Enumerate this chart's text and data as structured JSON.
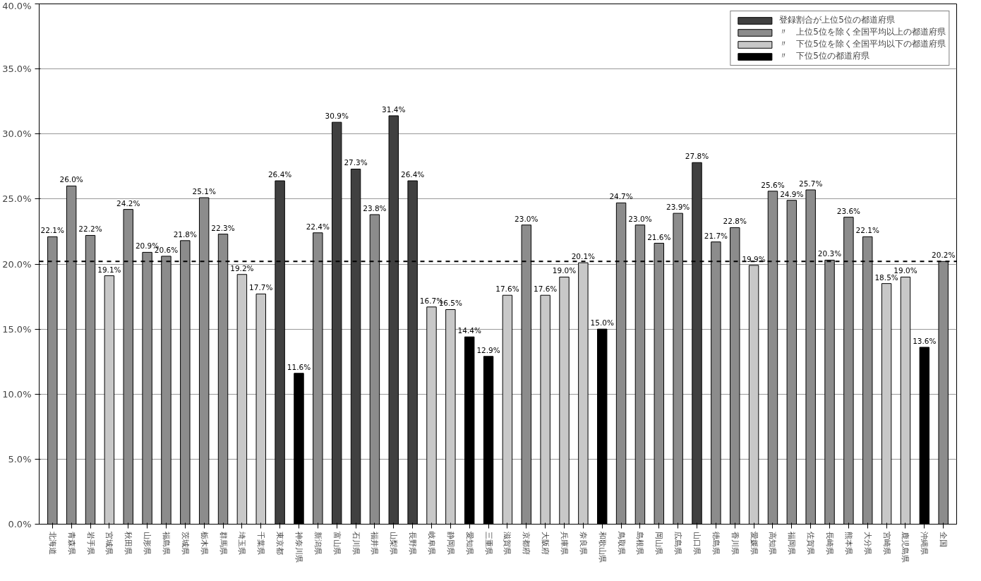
{
  "chart_data": {
    "type": "bar",
    "categories": [
      "北海道",
      "青森県",
      "岩手県",
      "宮城県",
      "秋田県",
      "山形県",
      "福島県",
      "茨城県",
      "栃木県",
      "群馬県",
      "埼玉県",
      "千葉県",
      "東京都",
      "神奈川県",
      "新潟県",
      "富山県",
      "石川県",
      "福井県",
      "山梨県",
      "長野県",
      "岐阜県",
      "静岡県",
      "愛知県",
      "三重県",
      "滋賀県",
      "京都府",
      "大阪府",
      "兵庫県",
      "奈良県",
      "和歌山県",
      "鳥取県",
      "島根県",
      "岡山県",
      "広島県",
      "山口県",
      "徳島県",
      "香川県",
      "愛媛県",
      "高知県",
      "福岡県",
      "佐賀県",
      "長崎県",
      "熊本県",
      "大分県",
      "宮崎県",
      "鹿児島県",
      "沖縄県",
      "全国"
    ],
    "series": [
      {
        "name": "登録割合が上位5位の都道府県",
        "color": "#404040",
        "values": [
          null,
          null,
          null,
          null,
          null,
          null,
          null,
          null,
          null,
          null,
          null,
          null,
          26.4,
          null,
          null,
          30.9,
          27.3,
          null,
          31.4,
          26.4,
          null,
          null,
          null,
          null,
          null,
          null,
          null,
          null,
          null,
          null,
          null,
          null,
          null,
          null,
          27.8,
          null,
          null,
          null,
          null,
          null,
          null,
          null,
          null,
          null,
          null,
          null,
          null,
          null
        ],
        "value_labels": [
          null,
          null,
          null,
          null,
          null,
          null,
          null,
          null,
          null,
          null,
          null,
          null,
          "26.4%",
          null,
          null,
          "30.9%",
          "27.3%",
          null,
          "31.4%",
          "26.4%",
          null,
          null,
          null,
          null,
          null,
          null,
          null,
          null,
          null,
          null,
          null,
          null,
          null,
          null,
          "27.8%",
          null,
          null,
          null,
          null,
          null,
          null,
          null,
          null,
          null,
          null,
          null,
          null,
          null
        ]
      },
      {
        "name": "〃　上位5位を除く全国平均以上の都道府県",
        "color": "#8c8c8c",
        "values": [
          22.1,
          26.0,
          22.2,
          null,
          24.2,
          20.9,
          20.6,
          21.8,
          25.1,
          22.3,
          null,
          null,
          null,
          null,
          22.4,
          null,
          null,
          23.8,
          null,
          null,
          null,
          null,
          null,
          null,
          null,
          23.0,
          null,
          null,
          null,
          null,
          24.7,
          23.0,
          21.6,
          23.9,
          null,
          21.7,
          22.8,
          null,
          25.6,
          24.9,
          25.7,
          20.3,
          23.6,
          22.1,
          null,
          null,
          null,
          20.2
        ],
        "value_labels": [
          "22.1%",
          "26.0%",
          "22.2%",
          null,
          "24.2%",
          "20.9%",
          "20.6%",
          "21.8%",
          "25.1%",
          "22.3%",
          null,
          null,
          null,
          null,
          "22.4%",
          null,
          null,
          "23.8%",
          null,
          null,
          null,
          null,
          null,
          null,
          null,
          "23.0%",
          null,
          null,
          null,
          null,
          "24.7%",
          "23.0%",
          "21.6%",
          "23.9%",
          null,
          "21.7%",
          "22.8%",
          null,
          "25.6%",
          "24.9%",
          "25.7%",
          "20.3%",
          "23.6%",
          "22.1%",
          null,
          null,
          null,
          "20.2%"
        ]
      },
      {
        "name": "〃　下位5位を除く全国平均以下の都道府県",
        "color": "#c8c8c8",
        "values": [
          null,
          null,
          null,
          19.1,
          null,
          null,
          null,
          null,
          null,
          null,
          19.2,
          17.7,
          null,
          null,
          null,
          null,
          null,
          null,
          null,
          null,
          16.7,
          16.5,
          null,
          null,
          17.6,
          null,
          17.6,
          19.0,
          20.1,
          null,
          null,
          null,
          null,
          null,
          null,
          null,
          null,
          19.9,
          null,
          null,
          null,
          null,
          null,
          null,
          18.5,
          19.0,
          null,
          null
        ],
        "value_labels": [
          null,
          null,
          null,
          "19.1%",
          null,
          null,
          null,
          null,
          null,
          null,
          "19.2%",
          "17.7%",
          null,
          null,
          null,
          null,
          null,
          null,
          null,
          null,
          "16.7%",
          "16.5%",
          null,
          null,
          "17.6%",
          null,
          "17.6%",
          "19.0%",
          "20.1%",
          null,
          null,
          null,
          null,
          null,
          null,
          null,
          null,
          "19.9%",
          null,
          null,
          null,
          null,
          null,
          null,
          "18.5%",
          "19.0%",
          null,
          null
        ]
      },
      {
        "name": "〃　下位5位の都道府県",
        "color": "#000000",
        "values": [
          null,
          null,
          null,
          null,
          null,
          null,
          null,
          null,
          null,
          null,
          null,
          null,
          null,
          11.6,
          null,
          null,
          null,
          null,
          null,
          null,
          null,
          null,
          14.4,
          12.9,
          null,
          null,
          null,
          null,
          null,
          15.0,
          null,
          null,
          null,
          null,
          null,
          null,
          null,
          null,
          null,
          null,
          null,
          null,
          null,
          null,
          null,
          null,
          13.6,
          null
        ],
        "value_labels": [
          null,
          null,
          null,
          null,
          null,
          null,
          null,
          null,
          null,
          null,
          null,
          null,
          null,
          "11.6%",
          null,
          null,
          null,
          null,
          null,
          null,
          null,
          null,
          "14.4%",
          "12.9%",
          null,
          null,
          null,
          null,
          null,
          "15.0%",
          null,
          null,
          null,
          null,
          null,
          null,
          null,
          null,
          null,
          null,
          null,
          null,
          null,
          null,
          null,
          null,
          "13.6%",
          null
        ]
      }
    ],
    "ylim": [
      0,
      40
    ],
    "yticks": [
      {
        "value": 0,
        "label": "0.0%"
      },
      {
        "value": 5,
        "label": "5.0%"
      },
      {
        "value": 10,
        "label": "10.0%"
      },
      {
        "value": 15,
        "label": "15.0%"
      },
      {
        "value": 20,
        "label": "20.0%"
      },
      {
        "value": 25,
        "label": "25.0%"
      },
      {
        "value": 30,
        "label": "30.0%"
      },
      {
        "value": 35,
        "label": "35.0%"
      },
      {
        "value": 40,
        "label": "40.0%"
      }
    ],
    "ref_lines": [
      {
        "axis": "y",
        "value": 20.2,
        "label": null,
        "color": "#000000",
        "line_style": "dashed"
      }
    ],
    "grid": "y",
    "legend": "top right"
  }
}
